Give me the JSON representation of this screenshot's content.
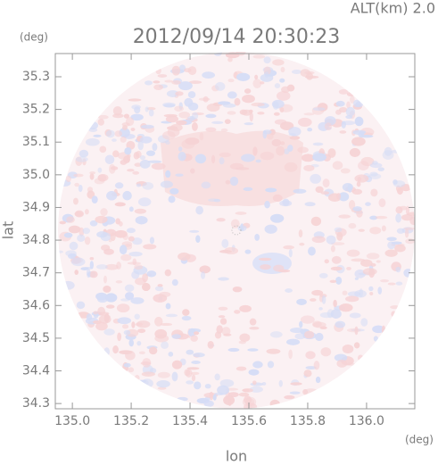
{
  "chart_data": {
    "type": "radar-map",
    "title": "2012/09/14 20:30:23",
    "altitude_label": "ALT(km) 2.0",
    "y_unit": "(deg)",
    "x_unit": "(deg)",
    "xlabel": "lon",
    "ylabel": "lat",
    "xlim": [
      134.942,
      136.164
    ],
    "ylim": [
      34.284,
      35.371
    ],
    "xticks": [
      {
        "value": 135.0,
        "label": "135.0"
      },
      135.2,
      135.4,
      135.6,
      135.8,
      {
        "value": 136.0,
        "label": "136.0"
      }
    ],
    "yticks": [
      34.3,
      34.4,
      34.5,
      34.6,
      34.7,
      34.8,
      34.9,
      {
        "value": 35.0,
        "label": "35.0"
      },
      35.1,
      35.2,
      35.3
    ]
  }
}
